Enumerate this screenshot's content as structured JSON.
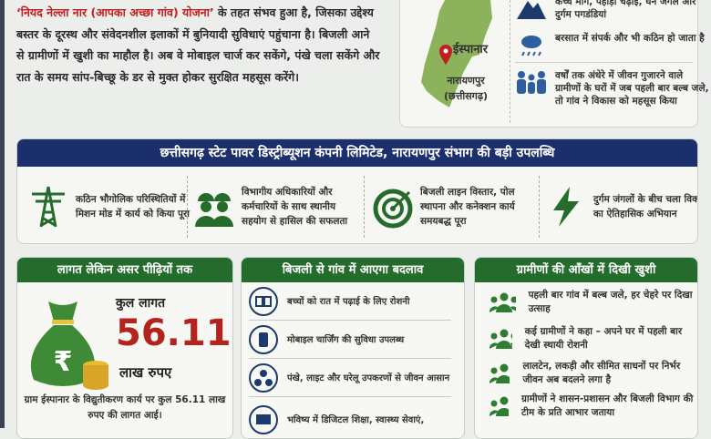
{
  "intro": {
    "highlight": "‘नियद नेल्ला नार (आपका अच्छा गांव) योजना’",
    "text": " के तहत संभव हुआ है, जिसका उद्देश्य बस्तर के दूरस्थ और संवेदनशील इलाकों में बुनियादी सुविधाएं पहुंचाना है। बिजली आने से ग्रामीणों में खुशी का माहौल है। अब वे मोबाइल चार्ज कर सकेंगे, पंखे चला सकेंगे और रात के समय सांप-बिच्छू के डर से मुक्त होकर सुरक्षित महसूस करेंगे।"
  },
  "map": {
    "village": "ईस्पानार",
    "district": "नारायणपुर",
    "state": "(छत्तीसगढ़)"
  },
  "features": [
    {
      "icon": "mountain-icon",
      "text": "कच्चे मार्ग, पहाड़ी चढ़ाई, घने जंगल और दुर्गम पगडंडियां"
    },
    {
      "icon": "rain-cloud-icon",
      "text": "बरसात में संपर्क और भी कठिन हो जाता है"
    },
    {
      "icon": "people-icon",
      "text": "वर्षों तक अंधेरे में जीवन गुजारने वाले ग्रामीणों के घरों में जब पहली बार बल्ब जले, तो गांव ने विकास को महसूस किया"
    }
  ],
  "banner": {
    "title": "छत्तीसगढ़ स्टेट पावर डिस्ट्रीब्यूशन कंपनी लिमिटेड, नारायणपुर संभाग की बड़ी उपलब्धि",
    "items": [
      {
        "icon": "power-tower-icon",
        "text": "कठिन भौगोलिक परिस्थितियों में मिशन मोड में कार्य को किया पूरा"
      },
      {
        "icon": "workers-icon",
        "text": "विभागीय अधिकारियों और कर्मचारियों के साथ स्थानीय सहयोग से हासिल की सफलता"
      },
      {
        "icon": "target-icon",
        "text": "बिजली लाइन विस्तार, पोल स्थापना और कनेक्शन कार्य समयबद्ध पूरा"
      },
      {
        "icon": "lightning-icon",
        "text": "दुर्गम जंगलों के बीच चला विकास का ऐतिहासिक अभियान"
      }
    ]
  },
  "cost": {
    "title": "लागत लेकिन असर पीढ़ियों तक",
    "label": "कुल लागत",
    "value": "56.11",
    "unit": "लाख रुपए",
    "note": "ग्राम ईस्पानार के विद्युतीकरण कार्य पर कुल 56.11 लाख रुपए की लागत आई।",
    "symbol": "₹"
  },
  "change": {
    "title": "बिजली से गांव में आएगा बदलाव",
    "items": [
      {
        "icon": "book-icon",
        "text": "बच्चों को रात में पढ़ाई के लिए रोशनी"
      },
      {
        "icon": "mobile-icon",
        "text": "मोबाइल चार्जिंग की सुविधा उपलब्ध"
      },
      {
        "icon": "fan-icon",
        "text": "पंखे, लाइट और घरेलू उपकरणों से जीवन आसान"
      },
      {
        "icon": "monitor-icon",
        "text": "भविष्य में डिजिटल शिक्षा, स्वास्थ्य सेवाएं,"
      }
    ]
  },
  "happiness": {
    "title": "ग्रामीणों की आँखों में दिखी खुशी",
    "items": [
      {
        "text": "पहली बार गांव में बल्ब जले, हर चेहरे पर दिखा उत्साह"
      },
      {
        "text": "कई ग्रामीणों ने कहा – अपने घर में पहली बार देखी स्थायी रोशनी"
      },
      {
        "text": "लालटेन, लकड़ी और सीमित साधनों पर निर्भर जीवन अब बदलने लगा है"
      },
      {
        "text": "ग्रामीणों ने शासन-प्रशासन और बिजली विभाग की टीम के प्रति आभार जताया"
      }
    ]
  },
  "colors": {
    "navy": "#1c2f6d",
    "green": "#246b2c",
    "red": "#b5231f"
  }
}
